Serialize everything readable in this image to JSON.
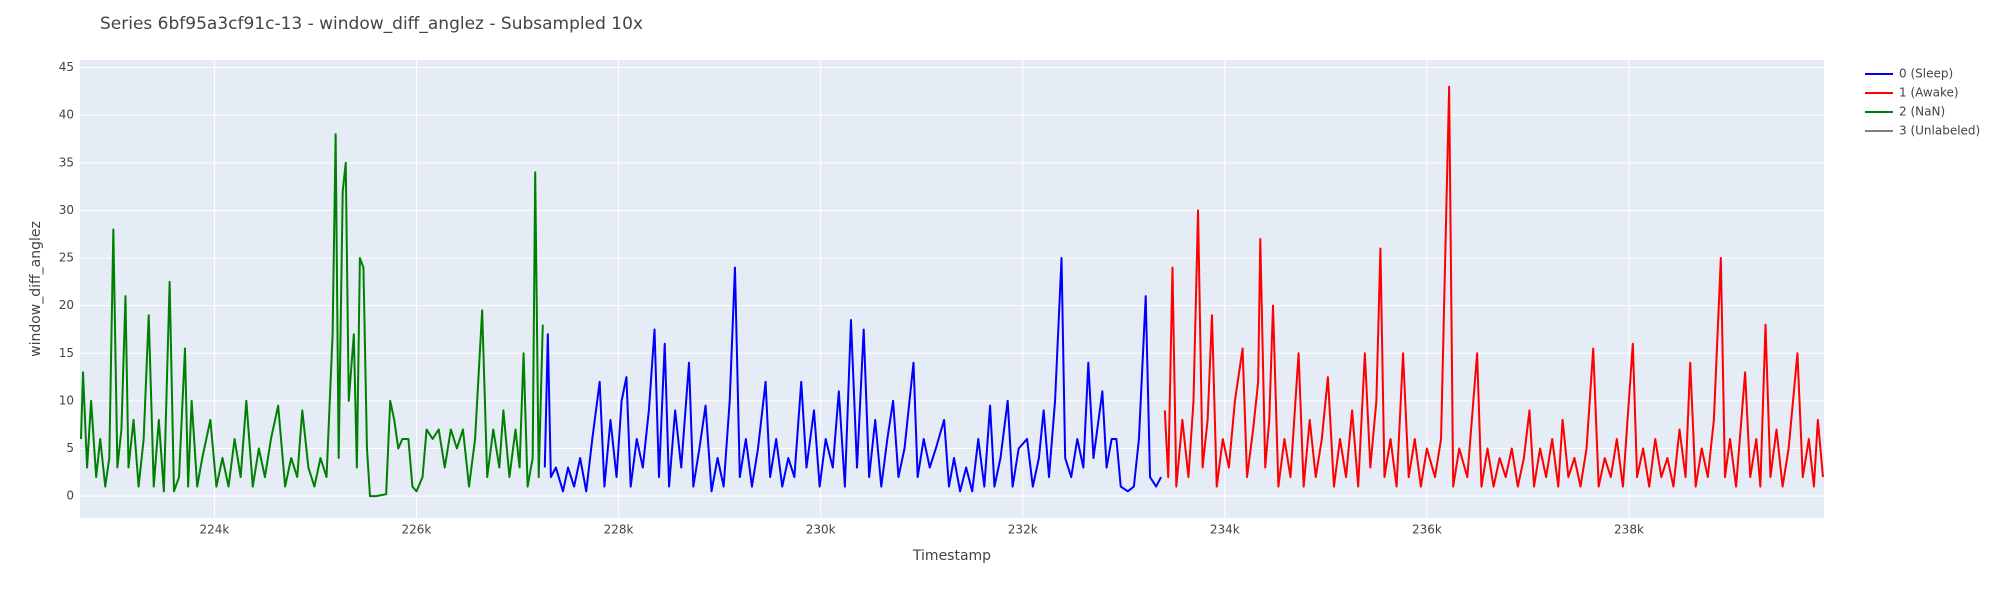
{
  "chart_data": {
    "type": "line",
    "title": "Series 6bf95a3cf91c-13 - window_diff_anglez - Subsampled 10x",
    "x_label": "Timestamp",
    "y_label": "window_diff_anglez",
    "xlim": [
      222670,
      239930
    ],
    "ylim": [
      -2.3,
      45.8
    ],
    "xticks": [
      {
        "value": 224000,
        "label": "224k"
      },
      {
        "value": 226000,
        "label": "226k"
      },
      {
        "value": 228000,
        "label": "228k"
      },
      {
        "value": 230000,
        "label": "230k"
      },
      {
        "value": 232000,
        "label": "232k"
      },
      {
        "value": 234000,
        "label": "234k"
      },
      {
        "value": 236000,
        "label": "236k"
      },
      {
        "value": 238000,
        "label": "238k"
      }
    ],
    "yticks": [
      0,
      5,
      10,
      15,
      20,
      25,
      30,
      35,
      40,
      45
    ],
    "grid": true,
    "series": [
      {
        "name": "0 (Sleep)",
        "color": "#0000ff",
        "x": [
          227270,
          227300,
          227330,
          227380,
          227450,
          227500,
          227560,
          227620,
          227680,
          227740,
          227813,
          227860,
          227920,
          227980,
          228030,
          228078,
          228120,
          228180,
          228240,
          228300,
          228356,
          228400,
          228457,
          228500,
          228560,
          228620,
          228697,
          228740,
          228800,
          228861,
          228920,
          228980,
          229040,
          229100,
          229152,
          229200,
          229260,
          229320,
          229380,
          229455,
          229500,
          229560,
          229620,
          229680,
          229740,
          229808,
          229860,
          229934,
          229990,
          230050,
          230120,
          230180,
          230240,
          230300,
          230360,
          230426,
          230480,
          230540,
          230600,
          230660,
          230717,
          230770,
          230830,
          230919,
          230960,
          231020,
          231080,
          231140,
          231222,
          231270,
          231320,
          231380,
          231440,
          231500,
          231560,
          231620,
          231677,
          231720,
          231780,
          231851,
          231900,
          231960,
          232043,
          232100,
          232160,
          232207,
          232260,
          232320,
          232384,
          232420,
          232480,
          232540,
          232600,
          232649,
          232700,
          232788,
          232830,
          232880,
          232927,
          232970,
          233040,
          233100,
          233150,
          233217,
          233260,
          233320,
          233369
        ],
        "values": [
          3,
          17,
          2,
          3,
          0.5,
          3,
          1,
          4,
          0.5,
          6,
          12,
          1,
          8,
          2,
          10,
          12.5,
          1,
          6,
          3,
          9,
          17.5,
          2,
          16,
          1,
          9,
          3,
          14,
          1,
          5,
          9.5,
          0.5,
          4,
          1,
          10,
          24,
          2,
          6,
          1,
          5,
          12,
          2,
          6,
          1,
          4,
          2,
          12,
          3,
          9,
          1,
          6,
          3,
          11,
          1,
          18.5,
          3,
          17.5,
          2,
          8,
          1,
          6,
          10,
          2,
          5,
          14,
          2,
          6,
          3,
          5,
          8,
          1,
          4,
          0.5,
          3,
          0.5,
          6,
          1,
          9.5,
          1,
          4,
          10,
          1,
          5,
          6,
          1,
          4,
          9,
          2,
          10,
          25,
          4,
          2,
          6,
          3,
          14,
          4,
          11,
          3,
          6,
          6,
          1,
          0.5,
          1,
          6,
          21,
          2,
          1,
          2
        ]
      },
      {
        "name": "1 (Awake)",
        "color": "#ff0000",
        "x": [
          233406,
          233440,
          233482,
          233520,
          233580,
          233640,
          233690,
          233735,
          233780,
          233830,
          233873,
          233920,
          233980,
          234040,
          234100,
          234176,
          234220,
          234280,
          234330,
          234351,
          234400,
          234440,
          234477,
          234530,
          234590,
          234650,
          234730,
          234780,
          234840,
          234900,
          234960,
          235020,
          235080,
          235140,
          235200,
          235260,
          235320,
          235386,
          235440,
          235500,
          235540,
          235580,
          235640,
          235700,
          235764,
          235820,
          235880,
          235940,
          236000,
          236080,
          236140,
          236220,
          236260,
          236320,
          236400,
          236497,
          236540,
          236600,
          236660,
          236720,
          236780,
          236840,
          236900,
          236960,
          237015,
          237060,
          237120,
          237180,
          237240,
          237300,
          237343,
          237400,
          237460,
          237520,
          237580,
          237646,
          237700,
          237760,
          237820,
          237880,
          237940,
          238038,
          238080,
          238140,
          238200,
          238260,
          238320,
          238380,
          238440,
          238500,
          238560,
          238606,
          238660,
          238720,
          238780,
          238840,
          238909,
          238950,
          239000,
          239060,
          239149,
          239200,
          239260,
          239300,
          239351,
          239400,
          239460,
          239520,
          239580,
          239667,
          239720,
          239780,
          239830,
          239869,
          239920
        ],
        "values": [
          9,
          2,
          24,
          1,
          8,
          2,
          10,
          30,
          3,
          8,
          19,
          1,
          6,
          3,
          10,
          15.5,
          2,
          7,
          12,
          27,
          3,
          8,
          20,
          1,
          6,
          2,
          15,
          1,
          8,
          2,
          6,
          12.5,
          1,
          6,
          2,
          9,
          1,
          15,
          3,
          10,
          26,
          2,
          6,
          1,
          15,
          2,
          6,
          1,
          5,
          2,
          6,
          43,
          1,
          5,
          2,
          15,
          1,
          5,
          1,
          4,
          2,
          5,
          1,
          4,
          9,
          1,
          5,
          2,
          6,
          1,
          8,
          2,
          4,
          1,
          5,
          15.5,
          1,
          4,
          2,
          6,
          1,
          16,
          2,
          5,
          1,
          6,
          2,
          4,
          1,
          7,
          2,
          14,
          1,
          5,
          2,
          8,
          25,
          2,
          6,
          1,
          13,
          2,
          6,
          1,
          18,
          2,
          7,
          1,
          5,
          15,
          2,
          6,
          1,
          8,
          2
        ]
      },
      {
        "name": "2 (NaN)",
        "color": "#008000",
        "x": [
          222680,
          222700,
          222740,
          222780,
          222830,
          222870,
          222920,
          222960,
          223000,
          223040,
          223080,
          223120,
          223150,
          223200,
          223250,
          223300,
          223350,
          223400,
          223450,
          223500,
          223557,
          223600,
          223650,
          223709,
          223740,
          223775,
          223830,
          223880,
          223960,
          224020,
          224080,
          224140,
          224200,
          224260,
          224316,
          224380,
          224440,
          224500,
          224560,
          224631,
          224700,
          224760,
          224820,
          224870,
          224930,
          224990,
          225050,
          225110,
          225170,
          225200,
          225230,
          225270,
          225300,
          225330,
          225380,
          225410,
          225440,
          225475,
          225510,
          225540,
          225600,
          225700,
          225740,
          225780,
          225820,
          225860,
          225920,
          225960,
          226000,
          226060,
          226100,
          226160,
          226220,
          226280,
          226340,
          226400,
          226460,
          226520,
          226580,
          226650,
          226700,
          226760,
          226820,
          226860,
          226920,
          226980,
          227020,
          227060,
          227100,
          227150,
          227175,
          227210,
          227250
        ],
        "values": [
          6,
          13,
          3,
          10,
          2,
          6,
          1,
          4,
          28,
          3,
          7,
          21,
          3,
          8,
          1,
          6,
          19,
          1,
          8,
          0.5,
          22.5,
          0.5,
          2,
          15.5,
          1,
          10,
          1,
          4,
          8,
          1,
          4,
          1,
          6,
          2,
          10,
          1,
          5,
          2,
          6,
          9.5,
          1,
          4,
          2,
          9,
          3,
          1,
          4,
          2,
          17,
          38,
          4,
          32,
          35,
          10,
          17,
          3,
          25,
          24,
          5,
          0,
          0,
          0.2,
          10,
          8,
          5,
          6,
          6,
          1,
          0.5,
          2,
          7,
          6,
          7,
          3,
          7,
          5,
          7,
          1,
          6,
          19.5,
          2,
          7,
          3,
          9,
          2,
          7,
          3,
          15,
          1,
          4,
          34,
          2,
          18
        ]
      },
      {
        "name": "3 (Unlabeled)",
        "color": "#808080",
        "x": [],
        "values": []
      }
    ]
  }
}
